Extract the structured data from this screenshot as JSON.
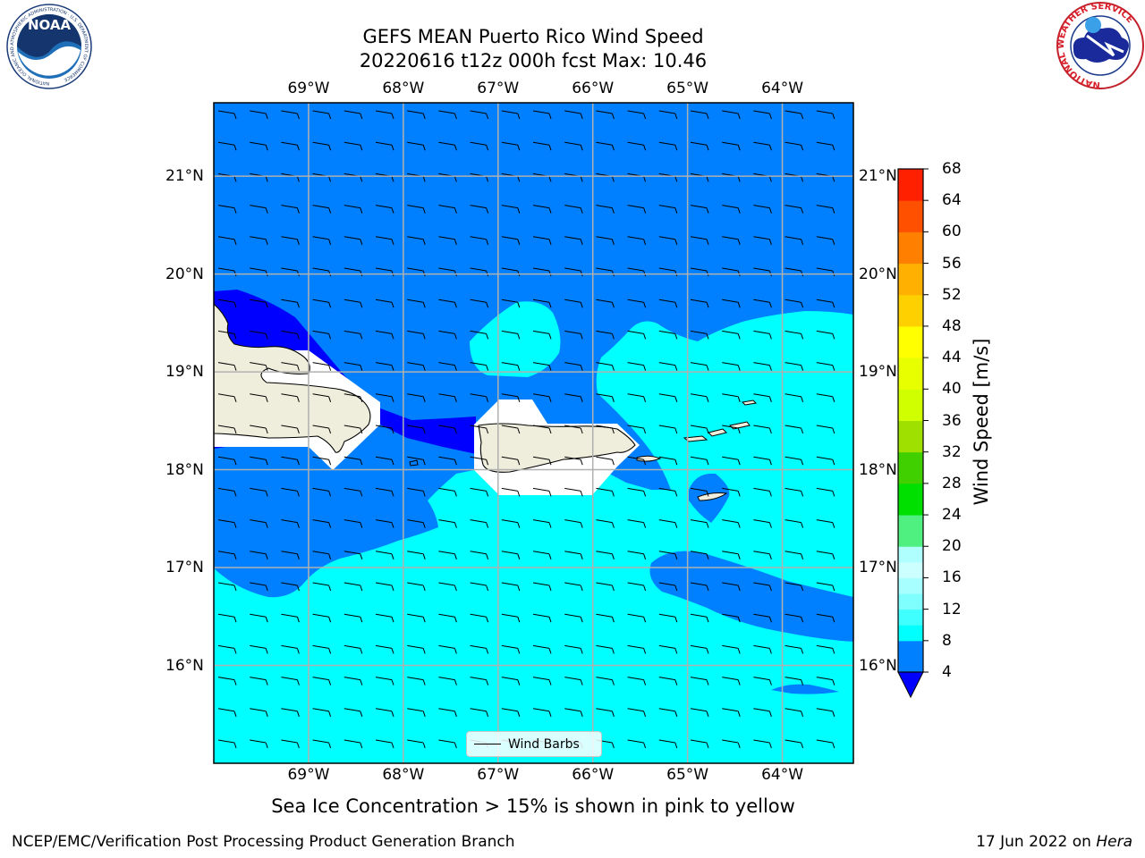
{
  "title_line1": "GEFS MEAN Puerto Rico Wind Speed",
  "title_line2": "20220616 t12z 000h fcst   Max: 10.46",
  "map": {
    "lon_ticks": [
      "69°W",
      "68°W",
      "67°W",
      "66°W",
      "65°W",
      "64°W"
    ],
    "lat_ticks": [
      "21°N",
      "20°N",
      "19°N",
      "18°N",
      "17°N",
      "16°N"
    ],
    "lon_range": [
      -70.0,
      -63.25
    ],
    "lat_range": [
      15.0,
      21.75
    ],
    "colors": {
      "land": "#efeedc",
      "masked": "#ffffff",
      "grid": "#b0b0b0"
    }
  },
  "colorbar": {
    "title": "Wind Speed [m/s]",
    "ticks": [
      "68",
      "64",
      "60",
      "56",
      "52",
      "48",
      "44",
      "40",
      "36",
      "32",
      "28",
      "24",
      "20",
      "16",
      "12",
      "8",
      "4"
    ],
    "levels": [
      4,
      8,
      10,
      12,
      14,
      16,
      18,
      20,
      24,
      28,
      32,
      36,
      40,
      44,
      48,
      52,
      56,
      60,
      64,
      68
    ],
    "colors": [
      "#0080ff",
      "#00ffff",
      "#40ffff",
      "#80ffff",
      "#a8ffff",
      "#ccffff",
      "#b0ffff",
      "#50f080",
      "#00e000",
      "#40d000",
      "#a0e000",
      "#d0ff00",
      "#e8ff00",
      "#ffff00",
      "#ffd000",
      "#ffb000",
      "#ff8000",
      "#ff5000",
      "#ff2000"
    ],
    "under_color": "#0000ff"
  },
  "legend_label": "Wind Barbs",
  "note": "Sea Ice Concentration > 15% is shown in pink to yellow",
  "footer_left": "NCEP/EMC/Verification Post Processing Product Generation Branch",
  "footer_date": "17 Jun 2022 on",
  "footer_host": "Hera",
  "logos": {
    "left": {
      "name": "noaa-logo",
      "text": "NOAA",
      "ring_text": "NATIONAL OCEANIC AND ATMOSPHERIC ADMINISTRATION · U.S. DEPARTMENT OF COMMERCE"
    },
    "right": {
      "name": "nws-logo",
      "ring_text": "NATIONAL WEATHER SERVICE"
    }
  }
}
